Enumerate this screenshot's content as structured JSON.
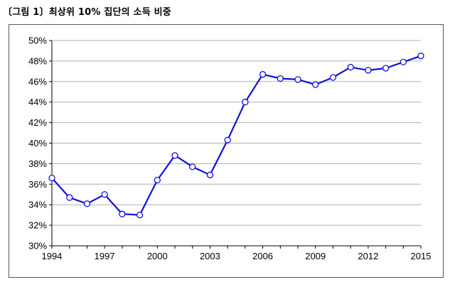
{
  "caption": "〔그림 1〕최상위 10% 집단의 소득 비중",
  "chart_data": {
    "type": "line",
    "title": "",
    "xlabel": "",
    "ylabel": "",
    "xlim": [
      1994,
      2015
    ],
    "ylim": [
      0.3,
      0.5
    ],
    "x_ticks": [
      "1994",
      "1997",
      "2000",
      "2003",
      "2006",
      "2009",
      "2012",
      "2015"
    ],
    "y_ticks": [
      "30%",
      "32%",
      "34%",
      "36%",
      "38%",
      "40%",
      "42%",
      "44%",
      "46%",
      "48%",
      "50%"
    ],
    "grid": "horizontal",
    "series": [
      {
        "color": "#1010e0",
        "marker": "open-circle",
        "x": [
          1994,
          1995,
          1996,
          1997,
          1998,
          1999,
          2000,
          2001,
          2002,
          2003,
          2004,
          2005,
          2006,
          2007,
          2008,
          2009,
          2010,
          2011,
          2012,
          2013,
          2014,
          2015
        ],
        "values": [
          0.366,
          0.347,
          0.341,
          0.35,
          0.331,
          0.33,
          0.364,
          0.388,
          0.377,
          0.369,
          0.403,
          0.44,
          0.467,
          0.463,
          0.462,
          0.457,
          0.464,
          0.474,
          0.471,
          0.473,
          0.479,
          0.485
        ]
      }
    ]
  }
}
